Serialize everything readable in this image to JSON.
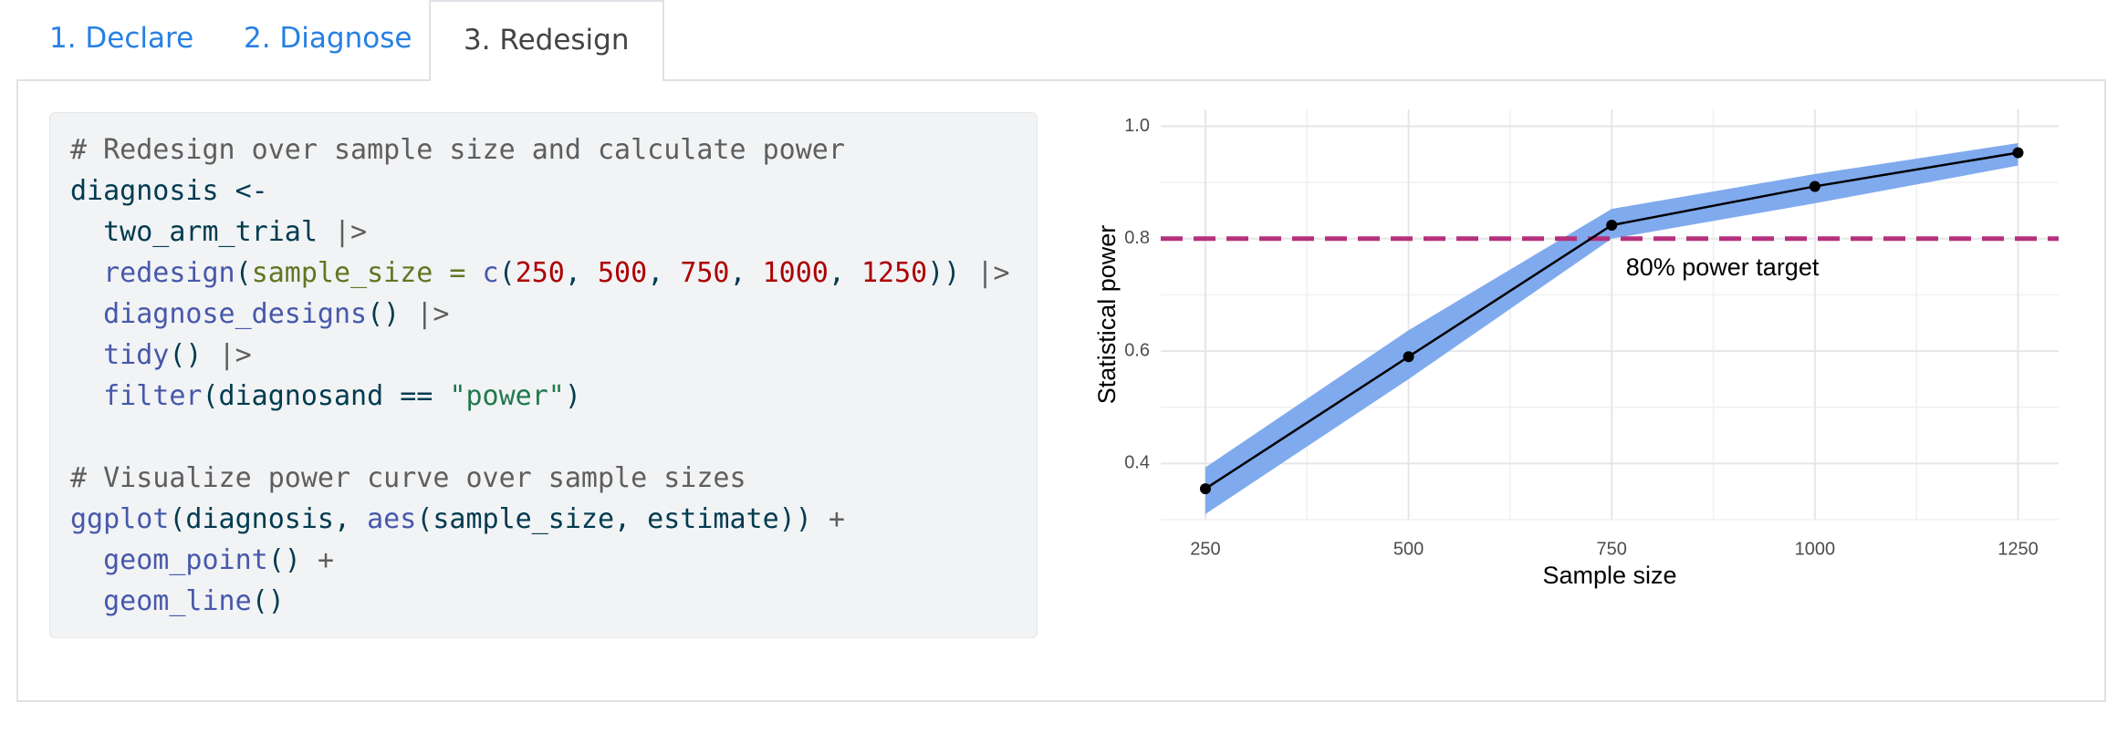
{
  "tabs": [
    "1. Declare",
    "2. Diagnose",
    "3. Redesign"
  ],
  "active_tab": 2,
  "code": [
    [
      {
        "text": "# Redesign over sample size and calculate power",
        "color": "#5e5e5e"
      }
    ],
    [
      {
        "text": "diagnosis <-",
        "color": "#003b4f"
      }
    ],
    [
      {
        "text": "  two_arm_trial ",
        "color": "#003b4f"
      },
      {
        "text": "|>",
        "color": "#5e5e5e"
      }
    ],
    [
      {
        "text": "  redesign",
        "color": "#4758ab"
      },
      {
        "text": "(",
        "color": "#003b4f"
      },
      {
        "text": "sample_size =",
        "color": "#657422"
      },
      {
        "text": " c",
        "color": "#4758ab"
      },
      {
        "text": "(",
        "color": "#003b4f"
      },
      {
        "text": "250",
        "color": "#ad0000"
      },
      {
        "text": ", ",
        "color": "#003b4f"
      },
      {
        "text": "500",
        "color": "#ad0000"
      },
      {
        "text": ", ",
        "color": "#003b4f"
      },
      {
        "text": "750",
        "color": "#ad0000"
      },
      {
        "text": ", ",
        "color": "#003b4f"
      },
      {
        "text": "1000",
        "color": "#ad0000"
      },
      {
        "text": ", ",
        "color": "#003b4f"
      },
      {
        "text": "1250",
        "color": "#ad0000"
      },
      {
        "text": ")) ",
        "color": "#003b4f"
      },
      {
        "text": "|>",
        "color": "#5e5e5e"
      }
    ],
    [
      {
        "text": "  diagnose_designs",
        "color": "#4758ab"
      },
      {
        "text": "() ",
        "color": "#003b4f"
      },
      {
        "text": "|>",
        "color": "#5e5e5e"
      }
    ],
    [
      {
        "text": "  tidy",
        "color": "#4758ab"
      },
      {
        "text": "() ",
        "color": "#003b4f"
      },
      {
        "text": "|>",
        "color": "#5e5e5e"
      }
    ],
    [
      {
        "text": "  filter",
        "color": "#4758ab"
      },
      {
        "text": "(diagnosand == ",
        "color": "#003b4f"
      },
      {
        "text": "\"power\"",
        "color": "#20794d"
      },
      {
        "text": ")",
        "color": "#003b4f"
      }
    ],
    [],
    [
      {
        "text": "# Visualize power curve over sample sizes",
        "color": "#5e5e5e"
      }
    ],
    [
      {
        "text": "ggplot",
        "color": "#4758ab"
      },
      {
        "text": "(diagnosis, ",
        "color": "#003b4f"
      },
      {
        "text": "aes",
        "color": "#4758ab"
      },
      {
        "text": "(sample_size, estimate)) ",
        "color": "#003b4f"
      },
      {
        "text": "+",
        "color": "#5e5e5e"
      }
    ],
    [
      {
        "text": "  geom_point",
        "color": "#4758ab"
      },
      {
        "text": "() ",
        "color": "#003b4f"
      },
      {
        "text": "+",
        "color": "#5e5e5e"
      }
    ],
    [
      {
        "text": "  geom_line",
        "color": "#4758ab"
      },
      {
        "text": "()",
        "color": "#003b4f"
      }
    ]
  ],
  "chart_data": {
    "type": "line",
    "x_label": "Sample size",
    "y_label": "Statistical power",
    "x": [
      250,
      500,
      750,
      1000,
      1250
    ],
    "series": [
      {
        "color": "#000000",
        "values": [
          0.355,
          0.59,
          0.824,
          0.893,
          0.953
        ]
      }
    ],
    "ribbon": {
      "color": "#80aaee",
      "lower": [
        0.31,
        0.55,
        0.8,
        0.863,
        0.93
      ],
      "upper": [
        0.393,
        0.637,
        0.853,
        0.915,
        0.97
      ]
    },
    "hline": {
      "value": 0.8,
      "color": "#b5317d",
      "label": "80% power target"
    },
    "xlim": [
      195,
      1300
    ],
    "ylim": [
      0.3,
      1.03
    ],
    "xticks": [
      250,
      500,
      750,
      1000,
      1250
    ],
    "yticks": [
      0.4,
      0.6,
      0.8,
      {
        "value": 1.0,
        "label": "1.0"
      }
    ],
    "x_minor_grid": [
      375,
      625,
      875,
      1125
    ],
    "y_minor_grid": [
      0.3,
      0.5,
      0.7,
      0.9
    ],
    "grid": true
  }
}
